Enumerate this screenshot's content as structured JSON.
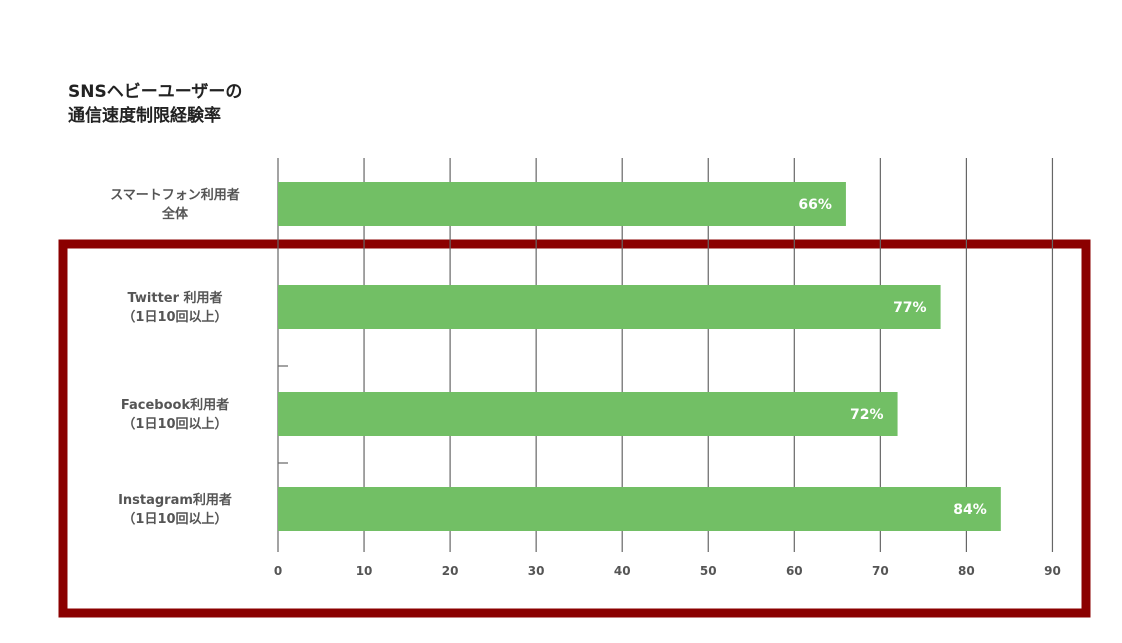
{
  "chart_data": {
    "type": "bar",
    "orientation": "horizontal",
    "title_lines": [
      "SNSヘビーユーザーの",
      "通信速度制限経験率"
    ],
    "categories": [
      [
        "スマートフォン利用者",
        "全体"
      ],
      [
        "Twitter 利用者",
        "（1日10回以上）"
      ],
      [
        "Facebook利用者",
        "（1日10回以上）"
      ],
      [
        "Instagram利用者",
        "（1日10回以上）"
      ]
    ],
    "values": [
      66,
      77,
      72,
      84
    ],
    "value_labels": [
      "66%",
      "77%",
      "72%",
      "84%"
    ],
    "xlim": [
      0,
      90
    ],
    "xticks": [
      "0",
      "10",
      "20",
      "30",
      "40",
      "50",
      "60",
      "70",
      "80",
      "90"
    ],
    "grid": true,
    "highlight_box": "around the three SNS user categories",
    "colors": {
      "bar": "#72bf65",
      "grid": "#666666",
      "highlight": "#8b0000",
      "bar_label": "#ffffff"
    }
  }
}
